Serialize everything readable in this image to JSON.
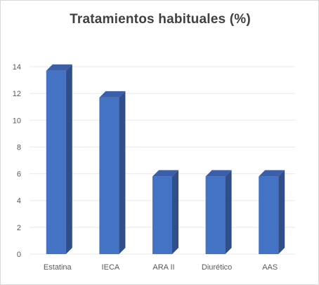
{
  "chart_data": {
    "type": "bar",
    "title": "Tratamientos habituales (%)",
    "categories": [
      "Estatina",
      "IECA",
      "ARA II",
      "Diurético",
      "AAS"
    ],
    "values": [
      13.7,
      11.7,
      5.8,
      5.8,
      5.8
    ],
    "ylim": [
      0,
      14
    ],
    "yticks": [
      0,
      2,
      4,
      6,
      8,
      10,
      12,
      14
    ],
    "grid": true,
    "bar_style": "3d",
    "colors": {
      "bar_front": "#4472C4",
      "bar_side": "#2F4E8A",
      "bar_top": "#3A5FA8",
      "grid": "#e8e8e8"
    }
  }
}
